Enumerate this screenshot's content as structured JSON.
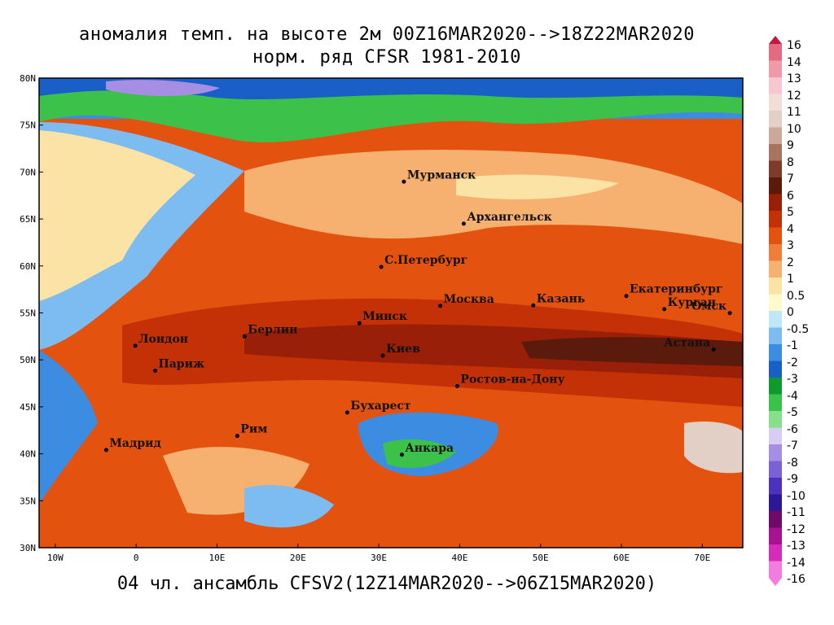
{
  "header": {
    "title_line1": "аномалия темп. на высоте 2м 00Z16MAR2020-->18Z22MAR2020",
    "title_line2": "норм. ряд CFSR 1981-2010"
  },
  "footer": {
    "ensemble_text": "04 чл. ансамбль CFSV2(12Z14MAR2020-->06Z15MAR2020)"
  },
  "map": {
    "lon_ticks": [
      "10W",
      "0",
      "10E",
      "20E",
      "30E",
      "40E",
      "50E",
      "60E",
      "70E"
    ],
    "lat_ticks": [
      "80N",
      "75N",
      "70N",
      "65N",
      "60N",
      "55N",
      "50N",
      "45N",
      "40N",
      "35N",
      "30N"
    ],
    "cities": [
      {
        "name": "Мурманск",
        "lon": 33.1,
        "lat": 68.97
      },
      {
        "name": "Архангельск",
        "lon": 40.5,
        "lat": 64.5
      },
      {
        "name": "С.Петербург",
        "lon": 30.3,
        "lat": 59.9
      },
      {
        "name": "Москва",
        "lon": 37.6,
        "lat": 55.75
      },
      {
        "name": "Казань",
        "lon": 49.1,
        "lat": 55.8
      },
      {
        "name": "Екатеринбург",
        "lon": 60.6,
        "lat": 56.8
      },
      {
        "name": "Курган",
        "lon": 65.3,
        "lat": 55.4
      },
      {
        "name": "Омск",
        "lon": 73.4,
        "lat": 54.98
      },
      {
        "name": "Астана",
        "lon": 71.4,
        "lat": 51.1
      },
      {
        "name": "Минск",
        "lon": 27.6,
        "lat": 53.9
      },
      {
        "name": "Киев",
        "lon": 30.5,
        "lat": 50.45
      },
      {
        "name": "Ростов-на-Дону",
        "lon": 39.7,
        "lat": 47.2
      },
      {
        "name": "Лондон",
        "lon": -0.1,
        "lat": 51.5
      },
      {
        "name": "Берлин",
        "lon": 13.4,
        "lat": 52.5
      },
      {
        "name": "Париж",
        "lon": 2.35,
        "lat": 48.85
      },
      {
        "name": "Бухарест",
        "lon": 26.1,
        "lat": 44.4
      },
      {
        "name": "Рим",
        "lon": 12.5,
        "lat": 41.9
      },
      {
        "name": "Мадрид",
        "lon": -3.7,
        "lat": 40.4
      },
      {
        "name": "Анкара",
        "lon": 32.85,
        "lat": 39.9
      }
    ]
  },
  "colorbar": {
    "labels": [
      "16",
      "14",
      "13",
      "12",
      "11",
      "10",
      "9",
      "8",
      "7",
      "6",
      "5",
      "4",
      "3",
      "2",
      "1",
      "0.5",
      "0",
      "-0.5",
      "-1",
      "-2",
      "-3",
      "-4",
      "-5",
      "-6",
      "-7",
      "-8",
      "-9",
      "-10",
      "-11",
      "-12",
      "-13",
      "-14",
      "-16"
    ],
    "colors": [
      "#c2183b",
      "#e36a80",
      "#ef9aa8",
      "#f6c7cf",
      "#f3ddd8",
      "#e2cfc6",
      "#cba899",
      "#a8745f",
      "#7e3b2a",
      "#5a1a0c",
      "#9a1f08",
      "#c43107",
      "#e4520f",
      "#f07e3a",
      "#f6b070",
      "#fbe3a6",
      "#fffac9",
      "#bfe7f7",
      "#7cbcf0",
      "#3c8ce2",
      "#1a5fc8",
      "#0f9a2f",
      "#3cc24a",
      "#86e08a",
      "#d6ccf4",
      "#a58ee4",
      "#7a62d6",
      "#4c32be",
      "#2a1896",
      "#6f0a68",
      "#a6128f",
      "#d72cb8",
      "#f27de0"
    ]
  }
}
